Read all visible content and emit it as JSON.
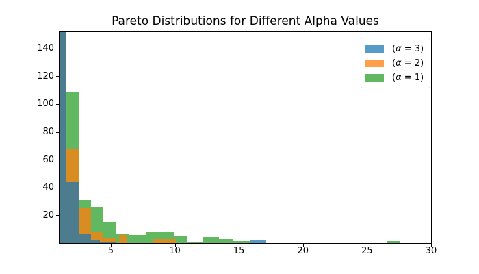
{
  "title": "Pareto Distributions for Different Alpha Values",
  "legend": {
    "items": [
      {
        "label": "(α = 3)",
        "color": "rgba(31,119,180,0.75)"
      },
      {
        "label": "(α = 2)",
        "color": "rgba(255,127,14,0.75)"
      },
      {
        "label": "(α = 1)",
        "color": "rgba(44,160,44,0.75)"
      }
    ]
  },
  "chart_data": {
    "type": "bar",
    "subtype": "overlapping-histograms",
    "title": "Pareto Distributions for Different Alpha Values",
    "xlabel": "",
    "ylabel": "",
    "xlim": [
      1,
      30
    ],
    "ylim": [
      0,
      152.2
    ],
    "x_ticks": [
      5,
      10,
      15,
      20,
      25,
      30
    ],
    "y_ticks": [
      20,
      40,
      60,
      80,
      100,
      120,
      140
    ],
    "grid": false,
    "legend_position": "upper right",
    "note": "Series drawn in order green, orange, blue with ~0.75 alpha; first bin of every series exceeds the y-axis top and is clipped at ~152.",
    "series": [
      {
        "name": "(α = 1)",
        "color": "rgba(44,160,44,0.75)",
        "bins": [
          [
            1.0,
            1.53,
            152.2
          ],
          [
            1.53,
            2.5,
            108.4
          ],
          [
            2.5,
            3.46,
            31.2
          ],
          [
            3.46,
            4.42,
            26.3
          ],
          [
            4.42,
            5.41,
            15.3
          ],
          [
            5.41,
            6.37,
            6.7
          ],
          [
            6.37,
            7.73,
            5.8
          ],
          [
            7.73,
            9.98,
            7.9
          ],
          [
            9.98,
            10.95,
            4.9
          ],
          [
            10.95,
            12.18,
            0.7
          ],
          [
            12.18,
            13.43,
            4.6
          ],
          [
            13.43,
            14.5,
            3.2
          ],
          [
            14.5,
            15.92,
            1.3
          ],
          [
            26.55,
            27.52,
            1.6
          ]
        ]
      },
      {
        "name": "(α = 2)",
        "color": "rgba(255,127,14,0.75)",
        "bins": [
          [
            1.0,
            1.53,
            152.2
          ],
          [
            1.53,
            2.5,
            67.5
          ],
          [
            2.5,
            3.46,
            25.5
          ],
          [
            3.46,
            4.42,
            8.4
          ],
          [
            4.42,
            5.41,
            3.3
          ],
          [
            5.66,
            6.23,
            5.9
          ],
          [
            8.28,
            10.06,
            3.0
          ]
        ]
      },
      {
        "name": "(α = 3)",
        "color": "rgba(31,119,180,0.75)",
        "bins": [
          [
            1.0,
            1.53,
            152.2
          ],
          [
            1.53,
            2.5,
            44.3
          ],
          [
            2.5,
            3.46,
            6.3
          ],
          [
            3.46,
            4.14,
            2.6
          ],
          [
            4.14,
            5.41,
            1.2
          ],
          [
            15.92,
            17.1,
            1.9
          ]
        ]
      }
    ]
  }
}
